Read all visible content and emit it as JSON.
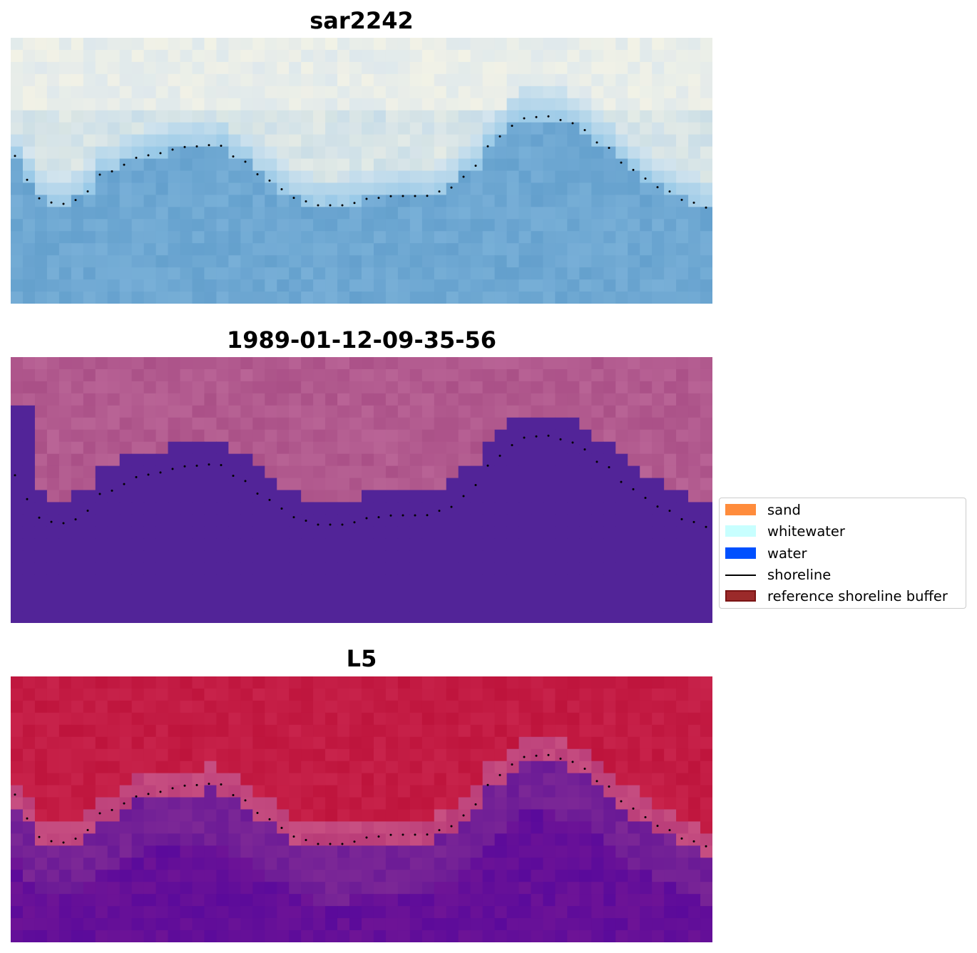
{
  "panels": [
    {
      "title": "sar2242"
    },
    {
      "title": "1989-01-12-09-35-56"
    },
    {
      "title": "L5"
    }
  ],
  "legend": {
    "items": [
      {
        "label": "sand",
        "color": "#ff8c3c",
        "kind": "patch"
      },
      {
        "label": "whitewater",
        "color": "#c8ffff",
        "kind": "patch"
      },
      {
        "label": "water",
        "color": "#0050ff",
        "kind": "patch"
      },
      {
        "label": "shoreline",
        "color": "#000000",
        "kind": "line"
      },
      {
        "label": "reference shoreline buffer",
        "color": "#9b2a2a",
        "edge": "#7a1414",
        "kind": "patch"
      }
    ]
  }
}
